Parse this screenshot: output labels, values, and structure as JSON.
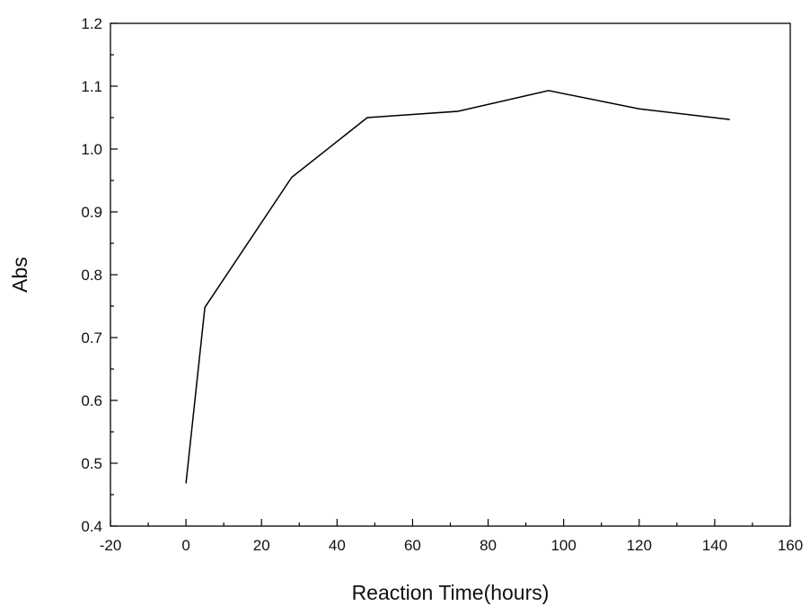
{
  "chart_data": {
    "type": "line",
    "title": "",
    "xlabel": "Reaction Time(hours)",
    "ylabel": "Abs",
    "xlim": [
      -20,
      160
    ],
    "ylim": [
      0.4,
      1.2
    ],
    "x_ticks": [
      -20,
      0,
      20,
      40,
      60,
      80,
      100,
      120,
      140,
      160
    ],
    "x_tick_labels": [
      "-20",
      "0",
      "20",
      "40",
      "60",
      "80",
      "100",
      "120",
      "140",
      "160"
    ],
    "y_ticks": [
      0.4,
      0.5,
      0.6,
      0.7,
      0.8,
      0.9,
      1.0,
      1.1,
      1.2
    ],
    "y_tick_labels": [
      "0.4",
      "0.5",
      "0.6",
      "0.7",
      "0.8",
      "0.9",
      "1.0",
      "1.1",
      "1.2"
    ],
    "grid": false,
    "legend": "none",
    "series": [
      {
        "x": [
          0,
          5,
          28,
          48,
          72,
          96,
          120,
          144
        ],
        "y": [
          0.468,
          0.748,
          0.955,
          1.05,
          1.06,
          1.093,
          1.064,
          1.047
        ],
        "color": "#000000"
      }
    ]
  }
}
